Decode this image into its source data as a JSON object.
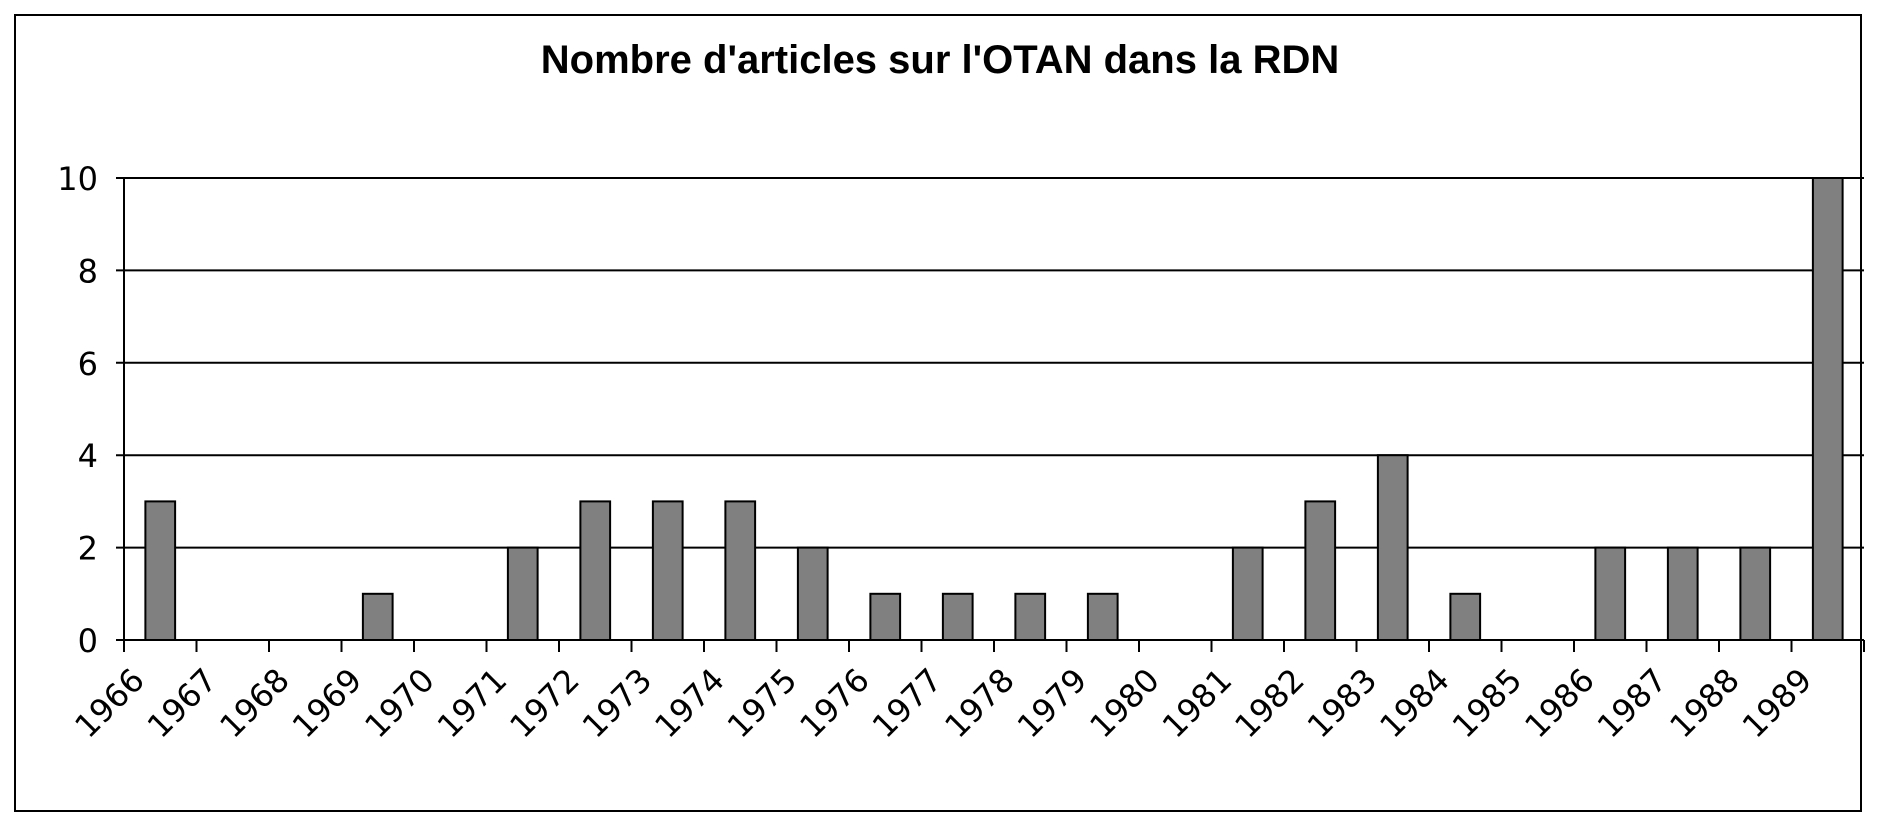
{
  "chart_data": {
    "type": "bar",
    "title": "Nombre d'articles sur l'OTAN dans la RDN",
    "xlabel": "",
    "ylabel": "",
    "categories": [
      "1966",
      "1967",
      "1968",
      "1969",
      "1970",
      "1971",
      "1972",
      "1973",
      "1974",
      "1975",
      "1976",
      "1977",
      "1978",
      "1979",
      "1980",
      "1981",
      "1982",
      "1983",
      "1984",
      "1985",
      "1986",
      "1987",
      "1988",
      "1989"
    ],
    "values": [
      3,
      0,
      0,
      1,
      0,
      2,
      3,
      3,
      3,
      2,
      1,
      1,
      1,
      1,
      0,
      2,
      3,
      4,
      1,
      0,
      2,
      2,
      2,
      10
    ],
    "ylim": [
      0,
      10
    ],
    "yticks": [
      "0",
      "2",
      "4",
      "6",
      "8",
      "10"
    ],
    "grid": true,
    "legend": "none",
    "bar_color": "#808080"
  }
}
